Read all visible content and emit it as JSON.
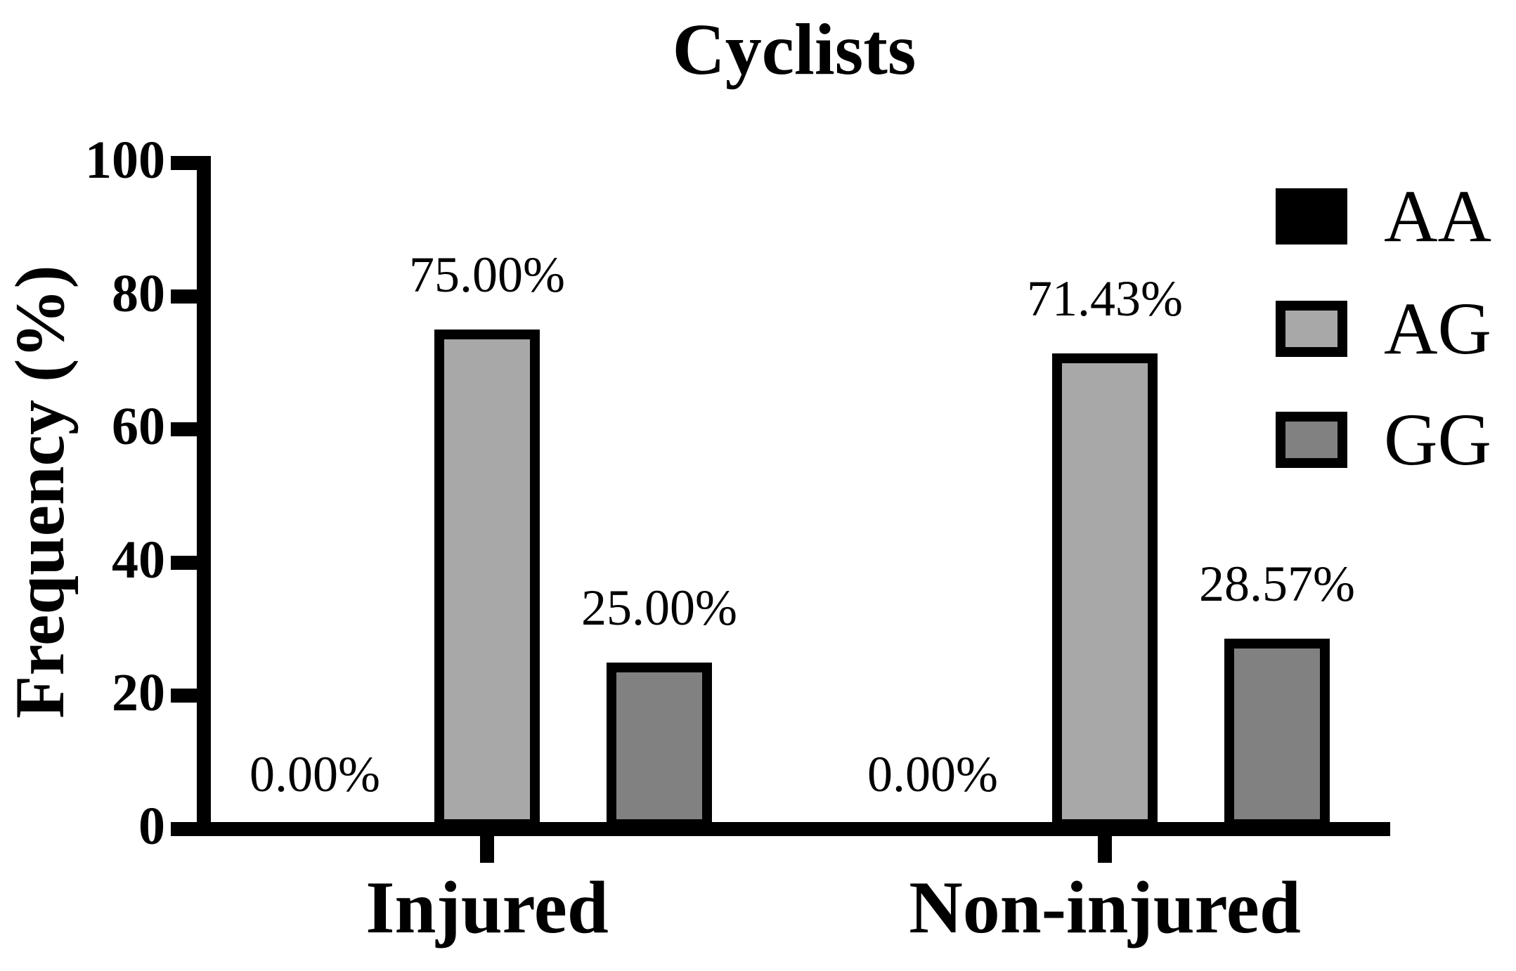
{
  "title": "Cyclists",
  "chart_data": {
    "type": "bar",
    "title": "Cyclists",
    "xlabel": "",
    "ylabel": "Frequency (%)",
    "ylim": [
      0,
      100
    ],
    "yticks": [
      0,
      20,
      40,
      60,
      80,
      100
    ],
    "grid": false,
    "legend_position": "top-right",
    "background": "#ffffff",
    "axis_color": "#000000",
    "text_color": "#000000",
    "bar_outline_color": "#000000",
    "categories": [
      "Injured",
      "Non-injured"
    ],
    "series": [
      {
        "name": "AA",
        "fill": "#000000",
        "values": [
          0,
          0
        ],
        "value_labels": [
          "0.00%",
          "0.00%"
        ]
      },
      {
        "name": "AG",
        "fill": "#a8a8a8",
        "values": [
          75.0,
          71.43
        ],
        "value_labels": [
          "75.00%",
          "71.43%"
        ]
      },
      {
        "name": "GG",
        "fill": "#818181",
        "values": [
          25.0,
          28.57
        ],
        "value_labels": [
          "25.00%",
          "28.57%"
        ]
      }
    ]
  }
}
